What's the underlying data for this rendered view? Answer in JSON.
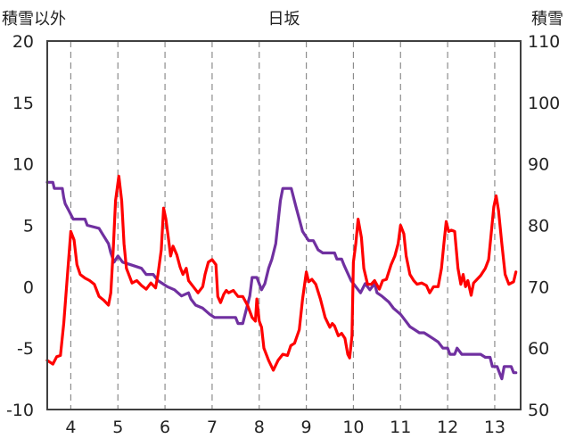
{
  "chart_data": {
    "type": "line",
    "title": "日坂",
    "left_axis_label": "積雪以外",
    "right_axis_label": "積雪",
    "xlim": [
      3.5,
      13.55
    ],
    "ylim": [
      -10,
      20
    ],
    "y2lim": [
      50,
      110
    ],
    "x_ticks": [
      4,
      5,
      6,
      7,
      8,
      9,
      10,
      11,
      12,
      13
    ],
    "y_ticks": [
      -10,
      -5,
      0,
      5,
      10,
      15,
      20
    ],
    "y2_ticks": [
      50,
      60,
      70,
      80,
      90,
      100,
      110
    ],
    "grid": {
      "vertical_dashed": true,
      "horizontal": false
    },
    "series": [
      {
        "axis": "left",
        "color": "#ff0000",
        "points": [
          [
            3.5,
            -6.0
          ],
          [
            3.62,
            -6.3
          ],
          [
            3.7,
            -5.7
          ],
          [
            3.78,
            -5.6
          ],
          [
            3.85,
            -3.0
          ],
          [
            3.93,
            1.0
          ],
          [
            4.0,
            4.5
          ],
          [
            4.07,
            3.8
          ],
          [
            4.13,
            1.8
          ],
          [
            4.2,
            1.0
          ],
          [
            4.3,
            0.7
          ],
          [
            4.4,
            0.5
          ],
          [
            4.5,
            0.2
          ],
          [
            4.55,
            -0.3
          ],
          [
            4.6,
            -0.8
          ],
          [
            4.7,
            -1.1
          ],
          [
            4.8,
            -1.5
          ],
          [
            4.85,
            -0.5
          ],
          [
            4.9,
            3.0
          ],
          [
            4.95,
            7.0
          ],
          [
            5.02,
            9.0
          ],
          [
            5.08,
            7.0
          ],
          [
            5.13,
            3.5
          ],
          [
            5.18,
            1.5
          ],
          [
            5.25,
            0.8
          ],
          [
            5.3,
            0.3
          ],
          [
            5.4,
            0.5
          ],
          [
            5.5,
            0.1
          ],
          [
            5.6,
            -0.2
          ],
          [
            5.7,
            0.3
          ],
          [
            5.8,
            -0.1
          ],
          [
            5.85,
            1.0
          ],
          [
            5.92,
            3.0
          ],
          [
            5.97,
            6.4
          ],
          [
            6.02,
            5.5
          ],
          [
            6.07,
            4.0
          ],
          [
            6.12,
            2.5
          ],
          [
            6.17,
            3.3
          ],
          [
            6.25,
            2.6
          ],
          [
            6.32,
            1.6
          ],
          [
            6.38,
            1.0
          ],
          [
            6.45,
            1.5
          ],
          [
            6.5,
            0.5
          ],
          [
            6.6,
            0.0
          ],
          [
            6.7,
            -0.5
          ],
          [
            6.8,
            0.0
          ],
          [
            6.85,
            1.0
          ],
          [
            6.92,
            2.0
          ],
          [
            7.0,
            2.2
          ],
          [
            7.08,
            1.8
          ],
          [
            7.12,
            -0.8
          ],
          [
            7.18,
            -1.3
          ],
          [
            7.25,
            -0.6
          ],
          [
            7.3,
            -0.3
          ],
          [
            7.35,
            -0.5
          ],
          [
            7.45,
            -0.3
          ],
          [
            7.55,
            -0.8
          ],
          [
            7.65,
            -0.8
          ],
          [
            7.75,
            -1.5
          ],
          [
            7.85,
            -2.5
          ],
          [
            7.92,
            -2.8
          ],
          [
            7.95,
            -1.0
          ],
          [
            8.0,
            -2.8
          ],
          [
            8.05,
            -3.3
          ],
          [
            8.1,
            -5.0
          ],
          [
            8.2,
            -6.0
          ],
          [
            8.3,
            -6.8
          ],
          [
            8.4,
            -6.0
          ],
          [
            8.5,
            -5.5
          ],
          [
            8.6,
            -5.6
          ],
          [
            8.67,
            -4.8
          ],
          [
            8.75,
            -4.6
          ],
          [
            8.85,
            -3.5
          ],
          [
            8.92,
            -1.0
          ],
          [
            9.0,
            1.2
          ],
          [
            9.05,
            0.4
          ],
          [
            9.12,
            0.6
          ],
          [
            9.2,
            0.2
          ],
          [
            9.3,
            -1.0
          ],
          [
            9.4,
            -2.5
          ],
          [
            9.5,
            -3.3
          ],
          [
            9.55,
            -3.0
          ],
          [
            9.6,
            -3.2
          ],
          [
            9.68,
            -4.0
          ],
          [
            9.75,
            -3.8
          ],
          [
            9.82,
            -4.2
          ],
          [
            9.88,
            -5.5
          ],
          [
            9.92,
            -5.8
          ],
          [
            9.97,
            -4.0
          ],
          [
            10.0,
            2.0
          ],
          [
            10.05,
            3.5
          ],
          [
            10.1,
            5.5
          ],
          [
            10.17,
            4.0
          ],
          [
            10.22,
            1.5
          ],
          [
            10.3,
            0.2
          ],
          [
            10.38,
            0.2
          ],
          [
            10.45,
            0.5
          ],
          [
            10.55,
            -0.2
          ],
          [
            10.62,
            0.5
          ],
          [
            10.7,
            0.6
          ],
          [
            10.8,
            1.8
          ],
          [
            10.88,
            2.5
          ],
          [
            10.95,
            3.5
          ],
          [
            11.0,
            5.0
          ],
          [
            11.07,
            4.3
          ],
          [
            11.12,
            2.5
          ],
          [
            11.2,
            1.0
          ],
          [
            11.28,
            0.5
          ],
          [
            11.35,
            0.2
          ],
          [
            11.45,
            0.3
          ],
          [
            11.55,
            0.1
          ],
          [
            11.62,
            -0.5
          ],
          [
            11.7,
            0.0
          ],
          [
            11.8,
            0.0
          ],
          [
            11.87,
            1.5
          ],
          [
            11.92,
            3.5
          ],
          [
            11.97,
            5.3
          ],
          [
            12.02,
            4.5
          ],
          [
            12.08,
            4.6
          ],
          [
            12.15,
            4.5
          ],
          [
            12.22,
            1.5
          ],
          [
            12.28,
            0.2
          ],
          [
            12.33,
            1.0
          ],
          [
            12.38,
            0.0
          ],
          [
            12.43,
            0.5
          ],
          [
            12.5,
            -0.7
          ],
          [
            12.55,
            0.3
          ],
          [
            12.6,
            0.5
          ],
          [
            12.7,
            0.9
          ],
          [
            12.8,
            1.5
          ],
          [
            12.87,
            2.2
          ],
          [
            12.93,
            4.5
          ],
          [
            12.98,
            6.5
          ],
          [
            13.03,
            7.4
          ],
          [
            13.08,
            6.2
          ],
          [
            13.15,
            3.5
          ],
          [
            13.22,
            1.0
          ],
          [
            13.3,
            0.2
          ],
          [
            13.4,
            0.4
          ],
          [
            13.45,
            1.2
          ]
        ]
      },
      {
        "axis": "right",
        "color": "#7030a0",
        "points": [
          [
            3.5,
            87.0
          ],
          [
            3.62,
            87.0
          ],
          [
            3.65,
            86.0
          ],
          [
            3.82,
            86.0
          ],
          [
            3.85,
            84.5
          ],
          [
            3.88,
            83.5
          ],
          [
            3.95,
            82.5
          ],
          [
            4.05,
            81.0
          ],
          [
            4.3,
            81.0
          ],
          [
            4.35,
            80.0
          ],
          [
            4.6,
            79.5
          ],
          [
            4.68,
            78.5
          ],
          [
            4.8,
            77.0
          ],
          [
            4.85,
            75.5
          ],
          [
            4.92,
            74.0
          ],
          [
            5.0,
            75.0
          ],
          [
            5.1,
            74.0
          ],
          [
            5.3,
            73.5
          ],
          [
            5.5,
            73.0
          ],
          [
            5.6,
            72.0
          ],
          [
            5.75,
            72.0
          ],
          [
            5.85,
            71.0
          ],
          [
            5.95,
            70.5
          ],
          [
            6.05,
            70.0
          ],
          [
            6.2,
            69.5
          ],
          [
            6.35,
            68.5
          ],
          [
            6.5,
            69.0
          ],
          [
            6.55,
            68.0
          ],
          [
            6.65,
            67.0
          ],
          [
            6.8,
            66.5
          ],
          [
            6.95,
            65.5
          ],
          [
            7.05,
            65.0
          ],
          [
            7.5,
            65.0
          ],
          [
            7.55,
            64.0
          ],
          [
            7.65,
            64.0
          ],
          [
            7.7,
            65.5
          ],
          [
            7.8,
            68.5
          ],
          [
            7.85,
            71.5
          ],
          [
            7.95,
            71.5
          ],
          [
            8.05,
            69.5
          ],
          [
            8.12,
            70.5
          ],
          [
            8.2,
            73.0
          ],
          [
            8.27,
            74.5
          ],
          [
            8.35,
            77.0
          ],
          [
            8.45,
            84.0
          ],
          [
            8.5,
            86.0
          ],
          [
            8.68,
            86.0
          ],
          [
            8.78,
            83.0
          ],
          [
            8.85,
            81.0
          ],
          [
            8.92,
            79.0
          ],
          [
            9.05,
            77.5
          ],
          [
            9.15,
            77.5
          ],
          [
            9.25,
            76.0
          ],
          [
            9.35,
            75.5
          ],
          [
            9.6,
            75.5
          ],
          [
            9.65,
            74.5
          ],
          [
            9.75,
            74.5
          ],
          [
            9.8,
            73.5
          ],
          [
            9.95,
            71.0
          ],
          [
            10.05,
            70.0
          ],
          [
            10.15,
            69.0
          ],
          [
            10.25,
            70.5
          ],
          [
            10.35,
            69.5
          ],
          [
            10.45,
            70.5
          ],
          [
            10.5,
            69.0
          ],
          [
            10.6,
            68.5
          ],
          [
            10.75,
            67.5
          ],
          [
            10.85,
            66.5
          ],
          [
            11.0,
            65.5
          ],
          [
            11.1,
            64.5
          ],
          [
            11.2,
            63.5
          ],
          [
            11.3,
            63.0
          ],
          [
            11.4,
            62.5
          ],
          [
            11.5,
            62.5
          ],
          [
            11.6,
            62.0
          ],
          [
            11.7,
            61.5
          ],
          [
            11.8,
            61.0
          ],
          [
            11.9,
            60.0
          ],
          [
            12.0,
            60.0
          ],
          [
            12.05,
            59.0
          ],
          [
            12.15,
            59.0
          ],
          [
            12.2,
            60.0
          ],
          [
            12.3,
            59.0
          ],
          [
            12.5,
            59.0
          ],
          [
            12.7,
            59.0
          ],
          [
            12.8,
            58.5
          ],
          [
            12.9,
            58.5
          ],
          [
            12.95,
            57.0
          ],
          [
            13.05,
            57.0
          ],
          [
            13.1,
            56.0
          ],
          [
            13.15,
            55.0
          ],
          [
            13.2,
            57.0
          ],
          [
            13.35,
            57.0
          ],
          [
            13.4,
            56.0
          ],
          [
            13.45,
            56.0
          ]
        ]
      }
    ]
  }
}
